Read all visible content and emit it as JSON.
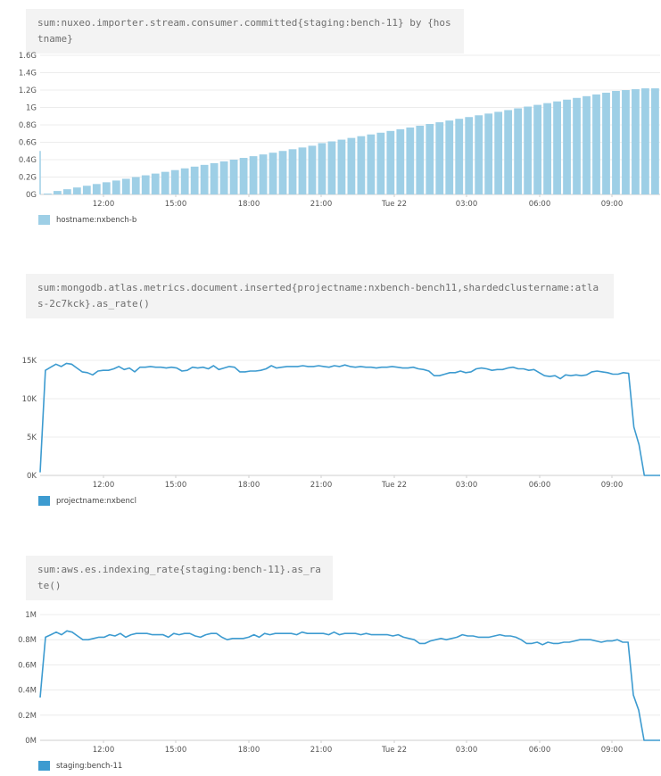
{
  "panels": [
    {
      "query": "sum:nuxeo.importer.stream.consumer.committed{staging:bench-11} by {hostname}",
      "legend": "hostname:nxbench-b",
      "color": "#9ecfe6"
    },
    {
      "query": "sum:mongodb.atlas.metrics.document.inserted{projectname:nxbench-bench11,shardedclustername:atlas-2c7kck}.as_rate()",
      "legend": "projectname:nxbencl",
      "color": "#3d9bd0"
    },
    {
      "query": "sum:aws.es.indexing_rate{staging:bench-11}.as_rate()",
      "legend": "staging:bench-11",
      "color": "#3d9bd0"
    }
  ],
  "chart_data": [
    {
      "type": "bar",
      "x_tick_labels": [
        "12:00",
        "15:00",
        "18:00",
        "21:00",
        "Tue 22",
        "03:00",
        "06:00",
        "09:00"
      ],
      "y_tick_labels": [
        "0G",
        "0.2G",
        "0.4G",
        "0.6G",
        "0.8G",
        "1G",
        "1.2G",
        "1.4G",
        "1.6G"
      ],
      "ylim": [
        0,
        1.6
      ],
      "y_unit": "G",
      "grid": true,
      "series": [
        {
          "name": "hostname:nxbench-b",
          "values": [
            0.01,
            0.04,
            0.06,
            0.08,
            0.1,
            0.12,
            0.14,
            0.16,
            0.18,
            0.2,
            0.22,
            0.24,
            0.26,
            0.28,
            0.3,
            0.32,
            0.34,
            0.36,
            0.38,
            0.4,
            0.42,
            0.44,
            0.46,
            0.48,
            0.5,
            0.52,
            0.54,
            0.56,
            0.59,
            0.61,
            0.63,
            0.65,
            0.67,
            0.69,
            0.71,
            0.73,
            0.75,
            0.77,
            0.79,
            0.81,
            0.83,
            0.85,
            0.87,
            0.89,
            0.91,
            0.93,
            0.95,
            0.97,
            0.99,
            1.01,
            1.03,
            1.05,
            1.07,
            1.09,
            1.11,
            1.13,
            1.15,
            1.17,
            1.19,
            1.2,
            1.21,
            1.22,
            1.22
          ]
        }
      ]
    },
    {
      "type": "line",
      "x_tick_labels": [
        "12:00",
        "15:00",
        "18:00",
        "21:00",
        "Tue 22",
        "03:00",
        "06:00",
        "09:00"
      ],
      "y_tick_labels": [
        "0K",
        "5K",
        "10K",
        "15K"
      ],
      "ylim": [
        0,
        15
      ],
      "y_unit": "K",
      "grid": true,
      "series": [
        {
          "name": "projectname:nxbencl",
          "values": [
            0.4,
            13.7,
            14.1,
            14.5,
            14.2,
            14.6,
            14.5,
            14.0,
            13.5,
            13.4,
            13.1,
            13.6,
            13.7,
            13.7,
            13.9,
            14.2,
            13.8,
            14.0,
            13.5,
            14.1,
            14.1,
            14.2,
            14.1,
            14.1,
            14.0,
            14.1,
            14.0,
            13.6,
            13.7,
            14.1,
            14.0,
            14.1,
            13.9,
            14.3,
            13.8,
            14.0,
            14.2,
            14.1,
            13.5,
            13.5,
            13.6,
            13.6,
            13.7,
            13.9,
            14.3,
            14.0,
            14.1,
            14.2,
            14.2,
            14.2,
            14.3,
            14.2,
            14.2,
            14.3,
            14.2,
            14.1,
            14.3,
            14.2,
            14.4,
            14.2,
            14.1,
            14.2,
            14.1,
            14.1,
            14.0,
            14.1,
            14.1,
            14.2,
            14.1,
            14.0,
            14.0,
            14.1,
            13.9,
            13.8,
            13.6,
            13.0,
            13.0,
            13.2,
            13.4,
            13.4,
            13.6,
            13.4,
            13.5,
            13.9,
            14.0,
            13.9,
            13.7,
            13.8,
            13.8,
            14.0,
            14.1,
            13.9,
            13.9,
            13.7,
            13.8,
            13.4,
            13.0,
            12.9,
            13.0,
            12.6,
            13.1,
            13.0,
            13.1,
            13.0,
            13.1,
            13.5,
            13.6,
            13.5,
            13.4,
            13.2,
            13.2,
            13.4,
            13.3,
            6.3,
            4.0,
            0.0,
            0.0,
            0.0,
            0.0
          ]
        }
      ]
    },
    {
      "type": "line",
      "x_tick_labels": [
        "12:00",
        "15:00",
        "18:00",
        "21:00",
        "Tue 22",
        "03:00",
        "06:00",
        "09:00"
      ],
      "y_tick_labels": [
        "0M",
        "0.2M",
        "0.4M",
        "0.6M",
        "0.8M",
        "1M"
      ],
      "ylim": [
        0,
        1
      ],
      "y_unit": "M",
      "grid": true,
      "series": [
        {
          "name": "staging:bench-11",
          "values": [
            0.34,
            0.82,
            0.84,
            0.86,
            0.84,
            0.87,
            0.86,
            0.83,
            0.8,
            0.8,
            0.81,
            0.82,
            0.82,
            0.84,
            0.83,
            0.85,
            0.82,
            0.84,
            0.85,
            0.85,
            0.85,
            0.84,
            0.84,
            0.84,
            0.82,
            0.85,
            0.84,
            0.85,
            0.85,
            0.83,
            0.82,
            0.84,
            0.85,
            0.85,
            0.82,
            0.8,
            0.81,
            0.81,
            0.81,
            0.82,
            0.84,
            0.82,
            0.85,
            0.84,
            0.85,
            0.85,
            0.85,
            0.85,
            0.84,
            0.86,
            0.85,
            0.85,
            0.85,
            0.85,
            0.84,
            0.86,
            0.84,
            0.85,
            0.85,
            0.85,
            0.84,
            0.85,
            0.84,
            0.84,
            0.84,
            0.84,
            0.83,
            0.84,
            0.82,
            0.81,
            0.8,
            0.77,
            0.77,
            0.79,
            0.8,
            0.81,
            0.8,
            0.81,
            0.82,
            0.84,
            0.83,
            0.83,
            0.82,
            0.82,
            0.82,
            0.83,
            0.84,
            0.83,
            0.83,
            0.82,
            0.8,
            0.77,
            0.77,
            0.78,
            0.76,
            0.78,
            0.77,
            0.77,
            0.78,
            0.78,
            0.79,
            0.8,
            0.8,
            0.8,
            0.79,
            0.78,
            0.79,
            0.79,
            0.8,
            0.78,
            0.78,
            0.36,
            0.24,
            0.0,
            0.0,
            0.0,
            0.0
          ]
        }
      ]
    }
  ]
}
